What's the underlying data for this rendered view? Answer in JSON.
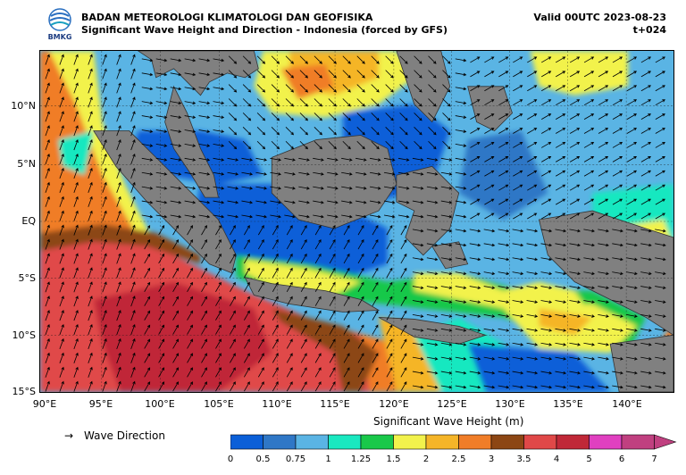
{
  "header": {
    "org_name": "BADAN METEOROLOGI KLIMATOLOGI DAN GEOFISIKA",
    "map_title": "Significant Wave Height and Direction - Indonesia (forced by GFS)",
    "valid_time": "Valid 00UTC 2023-08-23",
    "lead_time": "t+024",
    "logo_text": "BMKG"
  },
  "map": {
    "lon_ticks": [
      "90°E",
      "95°E",
      "100°E",
      "105°E",
      "110°E",
      "115°E",
      "120°E",
      "125°E",
      "130°E",
      "135°E",
      "140°E"
    ],
    "lat_ticks": [
      "10°N",
      "5°N",
      "EQ",
      "5°S",
      "10°S",
      "15°S"
    ],
    "lon_range": [
      90,
      145
    ],
    "lat_range": [
      -15,
      14
    ],
    "ocean_color_default": "#5ab4e4",
    "land_color": "#808080"
  },
  "legend": {
    "direction_label": "Wave Direction",
    "colorbar_title": "Significant Wave Height (m)",
    "colorbar_ticks": [
      "0",
      "0.5",
      "0.75",
      "1",
      "1.25",
      "1.5",
      "2",
      "2.5",
      "3",
      "3.5",
      "4",
      "5",
      "6",
      "7"
    ],
    "colorbar_colors": [
      "#0b5fd8",
      "#2f77c6",
      "#5ab4e4",
      "#19e8c0",
      "#19c84a",
      "#f2f24c",
      "#f5b528",
      "#f07d28",
      "#8c4614",
      "#e04848",
      "#c02838",
      "#e040c0",
      "#c04080"
    ]
  }
}
